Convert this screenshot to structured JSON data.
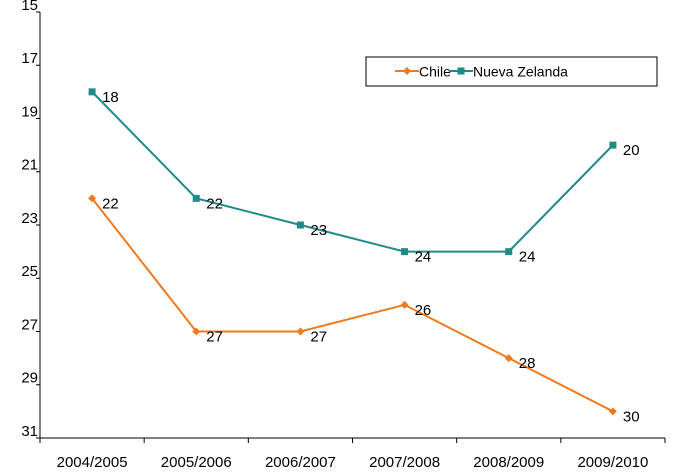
{
  "chart_data": {
    "type": "line",
    "categories": [
      "2004/2005",
      "2005/2006",
      "2006/2007",
      "2007/2008",
      "2008/2009",
      "2009/2010"
    ],
    "series": [
      {
        "name": "Chile",
        "color": "#f07a1e",
        "marker": "diamond",
        "values": [
          22,
          27,
          27,
          26,
          28,
          30
        ]
      },
      {
        "name": "Nueva Zelanda",
        "color": "#1f8a89",
        "marker": "square",
        "values": [
          18,
          22,
          23,
          24,
          24,
          20
        ]
      }
    ],
    "ylim": [
      31,
      15
    ],
    "yticks": [
      15,
      17,
      19,
      21,
      23,
      25,
      27,
      29,
      31
    ],
    "grid": false,
    "legend": "upper right",
    "data_labels": true
  }
}
